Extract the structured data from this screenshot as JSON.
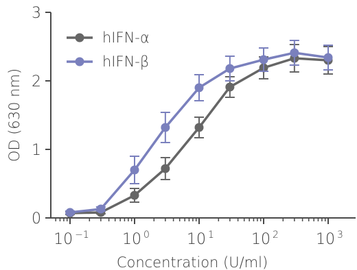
{
  "chart_data": {
    "type": "line",
    "xlabel": "Concentration (U/ml)",
    "ylabel": "OD (630 nm)",
    "x_scale": "log",
    "xlim": [
      0.06,
      1900
    ],
    "ylim": [
      0,
      3
    ],
    "x_ticks": [
      {
        "value": 0.1,
        "base": "10",
        "exp": "−1"
      },
      {
        "value": 1,
        "base": "10",
        "exp": "0"
      },
      {
        "value": 10,
        "base": "10",
        "exp": "1"
      },
      {
        "value": 100,
        "base": "10",
        "exp": "2"
      },
      {
        "value": 1000,
        "base": "10",
        "exp": "3"
      }
    ],
    "y_ticks": [
      0,
      1,
      2,
      3
    ],
    "x": [
      0.1,
      0.3,
      1,
      3,
      10,
      30,
      100,
      300,
      1000
    ],
    "legend_position": "top-left",
    "series": [
      {
        "name": "hIFN-α",
        "color": "#666666",
        "values": [
          0.07,
          0.08,
          0.33,
          0.72,
          1.32,
          1.91,
          2.19,
          2.33,
          2.3
        ],
        "errors": [
          0.02,
          0.02,
          0.1,
          0.16,
          0.15,
          0.15,
          0.16,
          0.2,
          0.2
        ]
      },
      {
        "name": "hIFN-β",
        "color": "#7a80bd",
        "values": [
          0.08,
          0.13,
          0.7,
          1.32,
          1.9,
          2.18,
          2.31,
          2.41,
          2.34
        ],
        "errors": [
          0.02,
          0.03,
          0.2,
          0.22,
          0.19,
          0.18,
          0.17,
          0.18,
          0.18
        ]
      }
    ]
  }
}
